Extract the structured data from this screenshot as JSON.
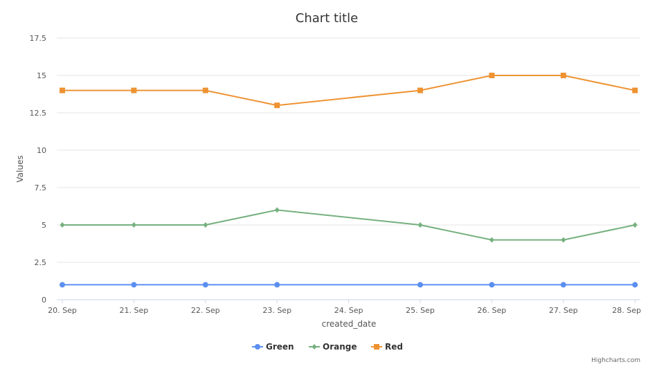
{
  "chart_data": {
    "type": "line",
    "title": "Chart title",
    "xlabel": "created_date",
    "ylabel": "Values",
    "categories": [
      "20. Sep",
      "21. Sep",
      "22. Sep",
      "23. Sep",
      "24. Sep",
      "25. Sep",
      "26. Sep",
      "27. Sep",
      "28. Sep"
    ],
    "yticks": [
      "0",
      "2.5",
      "5",
      "7.5",
      "10",
      "12.5",
      "15",
      "17.5"
    ],
    "ylim": [
      0,
      17.5
    ],
    "grid": true,
    "legend_position": "bottom-center",
    "series": [
      {
        "name": "Green",
        "color": "#5b8ff0",
        "marker": "circle",
        "points": [
          [
            "20. Sep",
            1
          ],
          [
            "21. Sep",
            1
          ],
          [
            "22. Sep",
            1
          ],
          [
            "23. Sep",
            1
          ],
          [
            "25. Sep",
            1
          ],
          [
            "26. Sep",
            1
          ],
          [
            "27. Sep",
            1
          ],
          [
            "28. Sep",
            1
          ]
        ]
      },
      {
        "name": "Orange",
        "color": "#74b07e",
        "marker": "diamond",
        "points": [
          [
            "20. Sep",
            5
          ],
          [
            "21. Sep",
            5
          ],
          [
            "22. Sep",
            5
          ],
          [
            "23. Sep",
            6
          ],
          [
            "25. Sep",
            5
          ],
          [
            "26. Sep",
            4
          ],
          [
            "27. Sep",
            4
          ],
          [
            "28. Sep",
            5
          ]
        ]
      },
      {
        "name": "Red",
        "color": "#ee9332",
        "marker": "square",
        "points": [
          [
            "20. Sep",
            14
          ],
          [
            "21. Sep",
            14
          ],
          [
            "22. Sep",
            14
          ],
          [
            "23. Sep",
            13
          ],
          [
            "25. Sep",
            14
          ],
          [
            "26. Sep",
            15
          ],
          [
            "27. Sep",
            15
          ],
          [
            "28. Sep",
            14
          ]
        ]
      }
    ]
  },
  "credits": "Highcharts.com"
}
